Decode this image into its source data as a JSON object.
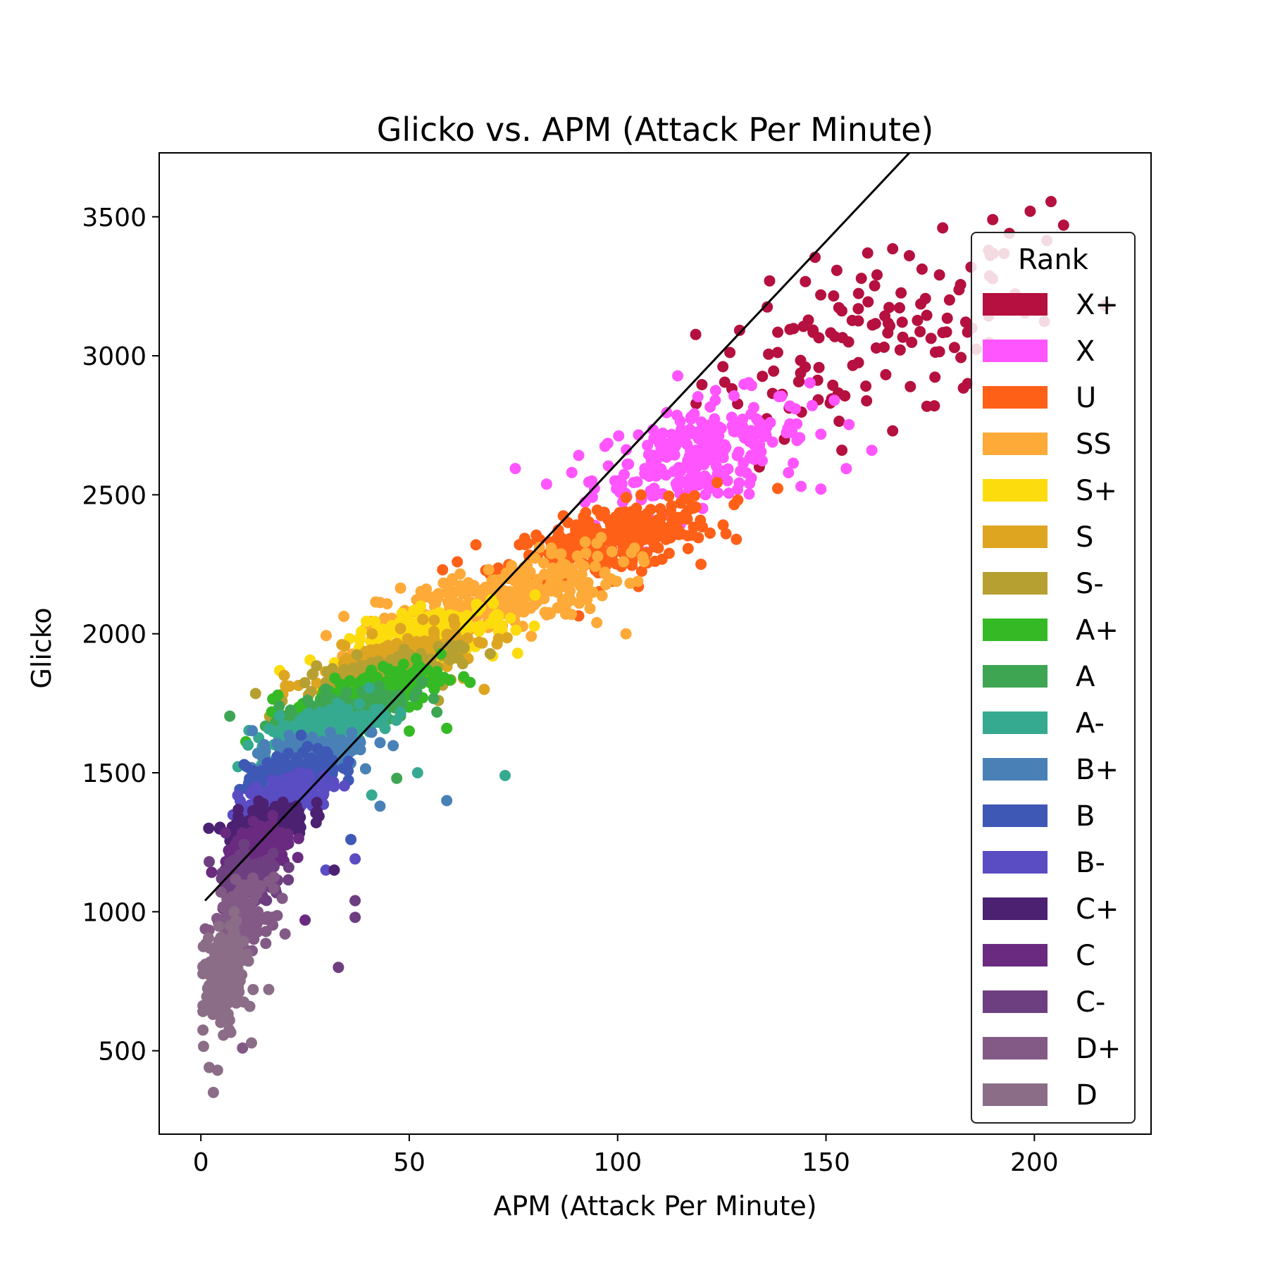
{
  "chart_data": {
    "type": "scatter",
    "title": "Glicko vs. APM (Attack Per Minute)",
    "xlabel": "APM (Attack Per Minute)",
    "ylabel": "Glicko",
    "xlim": [
      -10,
      228
    ],
    "ylim": [
      200,
      3730
    ],
    "xticks": [
      0,
      50,
      100,
      150,
      200
    ],
    "yticks": [
      500,
      1000,
      1500,
      2000,
      2500,
      3000,
      3500
    ],
    "grid": false,
    "legend": {
      "title": "Rank",
      "position": "right"
    },
    "trend_line": {
      "color": "#000000",
      "points": [
        [
          1,
          1040
        ],
        [
          170,
          3730
        ]
      ]
    },
    "series": [
      {
        "name": "X+",
        "color": "#b5103f",
        "center": [
          160,
          3050
        ],
        "spread": [
          25,
          200
        ],
        "count": 120,
        "extra_points": [
          [
            204,
            3555
          ],
          [
            199,
            3520
          ],
          [
            190,
            3490
          ],
          [
            207,
            3470
          ],
          [
            178,
            3460
          ],
          [
            194,
            3440
          ],
          [
            203,
            3415
          ],
          [
            189,
            3380
          ],
          [
            160,
            3370
          ],
          [
            166,
            3385
          ],
          [
            170,
            3360
          ],
          [
            217,
            3180
          ],
          [
            184,
            2900
          ],
          [
            176,
            2820
          ],
          [
            166,
            2730
          ],
          [
            151,
            2830
          ],
          [
            134,
            2600
          ],
          [
            140,
            2700
          ]
        ]
      },
      {
        "name": "X",
        "color": "#ff55ff",
        "center": [
          120,
          2650
        ],
        "spread": [
          16,
          130
        ],
        "count": 260,
        "extra_points": [
          [
            89,
            2580
          ],
          [
            161,
            2660
          ],
          [
            144,
            2530
          ],
          [
            152,
            2840
          ],
          [
            100,
            2550
          ]
        ]
      },
      {
        "name": "U",
        "color": "#ff6018",
        "center": [
          98,
          2330
        ],
        "spread": [
          16,
          85
        ],
        "count": 300,
        "extra_points": [
          [
            58,
            2230
          ],
          [
            66,
            2320
          ],
          [
            120,
            2250
          ],
          [
            126,
            2360
          ],
          [
            105,
            2170
          ]
        ]
      },
      {
        "name": "SS",
        "color": "#fdaa38",
        "center": [
          72,
          2130
        ],
        "spread": [
          18,
          90
        ],
        "count": 280,
        "extra_points": [
          [
            102,
            2000
          ],
          [
            95,
            2040
          ],
          [
            34,
            1920
          ],
          [
            58,
            2060
          ],
          [
            80,
            2170
          ]
        ]
      },
      {
        "name": "S+",
        "color": "#fddc0e",
        "center": [
          55,
          1990
        ],
        "spread": [
          12,
          70
        ],
        "count": 200,
        "extra_points": [
          [
            76,
            1930
          ],
          [
            70,
            1920
          ],
          [
            38,
            1950
          ]
        ]
      },
      {
        "name": "S",
        "color": "#dea521",
        "center": [
          45,
          1900
        ],
        "spread": [
          12,
          60
        ],
        "count": 200,
        "extra_points": [
          [
            20,
            1850
          ],
          [
            68,
            1800
          ],
          [
            63,
            1840
          ]
        ]
      },
      {
        "name": "S-",
        "color": "#b6a031",
        "center": [
          42,
          1840
        ],
        "spread": [
          12,
          55
        ],
        "count": 160,
        "extra_points": [
          [
            57,
            1760
          ]
        ]
      },
      {
        "name": "A+",
        "color": "#35ba25",
        "center": [
          40,
          1780
        ],
        "spread": [
          11,
          60
        ],
        "count": 200,
        "extra_points": [
          [
            59,
            1660
          ],
          [
            56,
            1800
          ],
          [
            50,
            1650
          ]
        ]
      },
      {
        "name": "A",
        "color": "#3ea653",
        "center": [
          34,
          1720
        ],
        "spread": [
          10,
          55
        ],
        "count": 180,
        "extra_points": [
          [
            47,
            1480
          ]
        ]
      },
      {
        "name": "A-",
        "color": "#35aa90",
        "center": [
          29,
          1650
        ],
        "spread": [
          9,
          60
        ],
        "count": 180,
        "extra_points": [
          [
            73,
            1490
          ],
          [
            52,
            1500
          ],
          [
            41,
            1420
          ]
        ]
      },
      {
        "name": "B+",
        "color": "#4981b7",
        "center": [
          25,
          1560
        ],
        "spread": [
          8,
          55
        ],
        "count": 160,
        "extra_points": [
          [
            59,
            1400
          ],
          [
            43,
            1380
          ]
        ]
      },
      {
        "name": "B",
        "color": "#3e58b6",
        "center": [
          22,
          1490
        ],
        "spread": [
          7,
          55
        ],
        "count": 160,
        "extra_points": [
          [
            36,
            1260
          ]
        ]
      },
      {
        "name": "B-",
        "color": "#5a4cc3",
        "center": [
          20,
          1410
        ],
        "spread": [
          7,
          50
        ],
        "count": 150,
        "extra_points": [
          [
            30,
            1150
          ],
          [
            37,
            1190
          ]
        ]
      },
      {
        "name": "C+",
        "color": "#4c2172",
        "center": [
          16,
          1320
        ],
        "spread": [
          6,
          50
        ],
        "count": 140,
        "extra_points": [
          [
            32,
            1150
          ]
        ]
      },
      {
        "name": "C",
        "color": "#692a80",
        "center": [
          14,
          1220
        ],
        "spread": [
          5,
          60
        ],
        "count": 140,
        "extra_points": [
          [
            25,
            970
          ]
        ]
      },
      {
        "name": "C-",
        "color": "#6e3f80",
        "center": [
          12,
          1110
        ],
        "spread": [
          5,
          60
        ],
        "count": 140,
        "extra_points": [
          [
            37,
            1040
          ],
          [
            37,
            980
          ],
          [
            33,
            800
          ],
          [
            2,
            1180
          ]
        ]
      },
      {
        "name": "D+",
        "color": "#835a86",
        "center": [
          10,
          980
        ],
        "spread": [
          4,
          80
        ],
        "count": 160,
        "extra_points": [
          [
            10,
            510
          ]
        ]
      },
      {
        "name": "D",
        "color": "#8b6d87",
        "center": [
          6,
          760
        ],
        "spread": [
          3,
          120
        ],
        "count": 240,
        "extra_points": [
          [
            3,
            350
          ],
          [
            2,
            440
          ],
          [
            4,
            430
          ]
        ]
      }
    ]
  }
}
